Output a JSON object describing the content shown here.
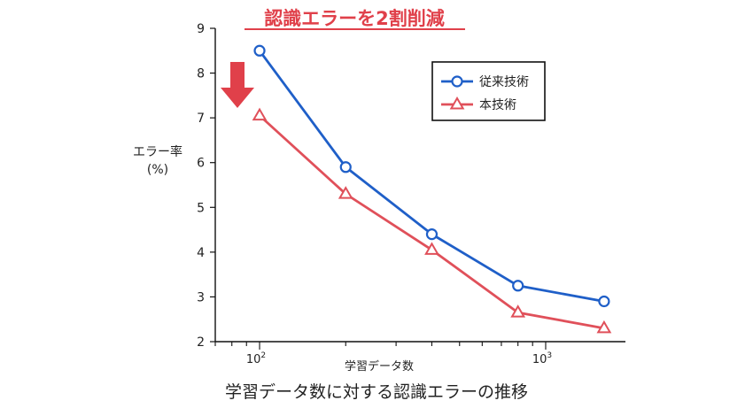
{
  "chart_data": {
    "type": "line",
    "title": "認識エラーを2割削減",
    "xlabel": "学習データ数",
    "ylabel": "エラー率",
    "ylabel_unit": "(%)",
    "x_scale": "log",
    "xlim": [
      70,
      1900
    ],
    "ylim": [
      2,
      9
    ],
    "y_ticks": [
      2,
      3,
      4,
      5,
      6,
      7,
      8,
      9
    ],
    "x_tick_labels": [
      {
        "value": 100,
        "base": "10",
        "exp": "2"
      },
      {
        "value": 1000,
        "base": "10",
        "exp": "3"
      }
    ],
    "x": [
      100,
      200,
      400,
      800,
      1600
    ],
    "series": [
      {
        "name": "従来技術",
        "color": "#1f5fc8",
        "marker": "circle",
        "values": [
          8.5,
          5.9,
          4.4,
          3.25,
          2.9
        ]
      },
      {
        "name": "本技術",
        "color": "#e0505a",
        "marker": "triangle",
        "values": [
          7.05,
          5.3,
          4.05,
          2.65,
          2.3
        ]
      }
    ],
    "legend_position": "top-right",
    "grid": false,
    "annotation": {
      "type": "down-arrow",
      "color": "#e0404a"
    }
  },
  "caption": "学習データ数に対する認識エラーの推移"
}
